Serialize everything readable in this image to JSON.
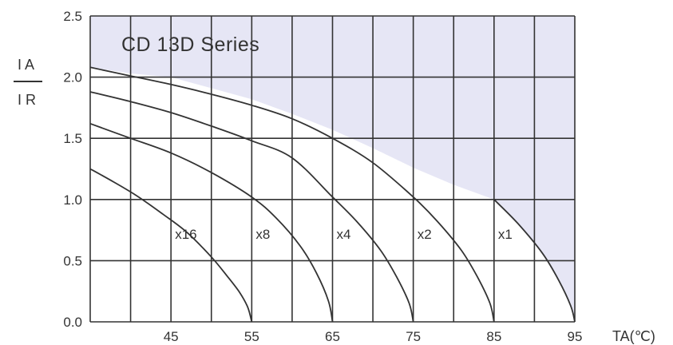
{
  "chart_data": {
    "type": "line",
    "title": "CD  13D  Series",
    "ylabel_top": "I A",
    "ylabel_bottom": "I R",
    "xlabel": "TA(℃)",
    "xlim": [
      35,
      95
    ],
    "ylim": [
      0,
      2.5
    ],
    "x_ticks": [
      45,
      55,
      65,
      75,
      85,
      95
    ],
    "y_ticks": [
      0.0,
      0.5,
      1.0,
      1.5,
      2.0,
      2.5
    ],
    "y_tick_labels": [
      "0.0",
      "0.5",
      "1.0",
      "1.5",
      "2.0",
      "2.5"
    ],
    "x_grid_step": 5,
    "grid": true,
    "shaded_region_color": "#e6e6f5",
    "line_color": "#333333",
    "series": [
      {
        "name": "x16",
        "label_at": [
          45.5,
          0.68
        ],
        "x": [
          35,
          38,
          41,
          44,
          47,
          50,
          52,
          53.5,
          54.5,
          55
        ],
        "y": [
          1.25,
          1.14,
          1.02,
          0.88,
          0.73,
          0.53,
          0.37,
          0.24,
          0.12,
          0.0
        ]
      },
      {
        "name": "x8",
        "label_at": [
          55.5,
          0.68
        ],
        "x": [
          35,
          40,
          45,
          50,
          55,
          58,
          61,
          63,
          64.5,
          65
        ],
        "y": [
          1.62,
          1.5,
          1.38,
          1.22,
          1.02,
          0.85,
          0.62,
          0.4,
          0.17,
          0.0
        ]
      },
      {
        "name": "x4",
        "label_at": [
          65.5,
          0.68
        ],
        "x": [
          35,
          40,
          45,
          50,
          55,
          60,
          65,
          68,
          71,
          73,
          74.5,
          75
        ],
        "y": [
          1.88,
          1.8,
          1.71,
          1.6,
          1.48,
          1.34,
          1.02,
          0.82,
          0.58,
          0.36,
          0.15,
          0.0
        ]
      },
      {
        "name": "x2",
        "label_at": [
          75.5,
          0.68
        ],
        "x": [
          35,
          40,
          45,
          50,
          55,
          60,
          65,
          70,
          75,
          78,
          81,
          83,
          84.5,
          85
        ],
        "y": [
          2.08,
          2.01,
          1.94,
          1.86,
          1.77,
          1.66,
          1.5,
          1.3,
          1.02,
          0.82,
          0.58,
          0.36,
          0.15,
          0.0
        ]
      },
      {
        "name": "x1",
        "label_at": [
          85.5,
          0.68
        ],
        "x": [
          85,
          88,
          91,
          93,
          94.5,
          95
        ],
        "y": [
          1.0,
          0.8,
          0.56,
          0.34,
          0.13,
          0.0
        ]
      }
    ],
    "shaded_boundary": {
      "x": [
        35,
        40,
        45,
        50,
        55,
        60,
        65,
        70,
        75,
        80,
        85,
        88,
        91,
        93,
        94.5,
        95
      ],
      "y": [
        2.08,
        2.03,
        2.0,
        1.91,
        1.82,
        1.7,
        1.57,
        1.42,
        1.26,
        1.12,
        1.0,
        0.8,
        0.56,
        0.34,
        0.13,
        0.0
      ]
    }
  }
}
